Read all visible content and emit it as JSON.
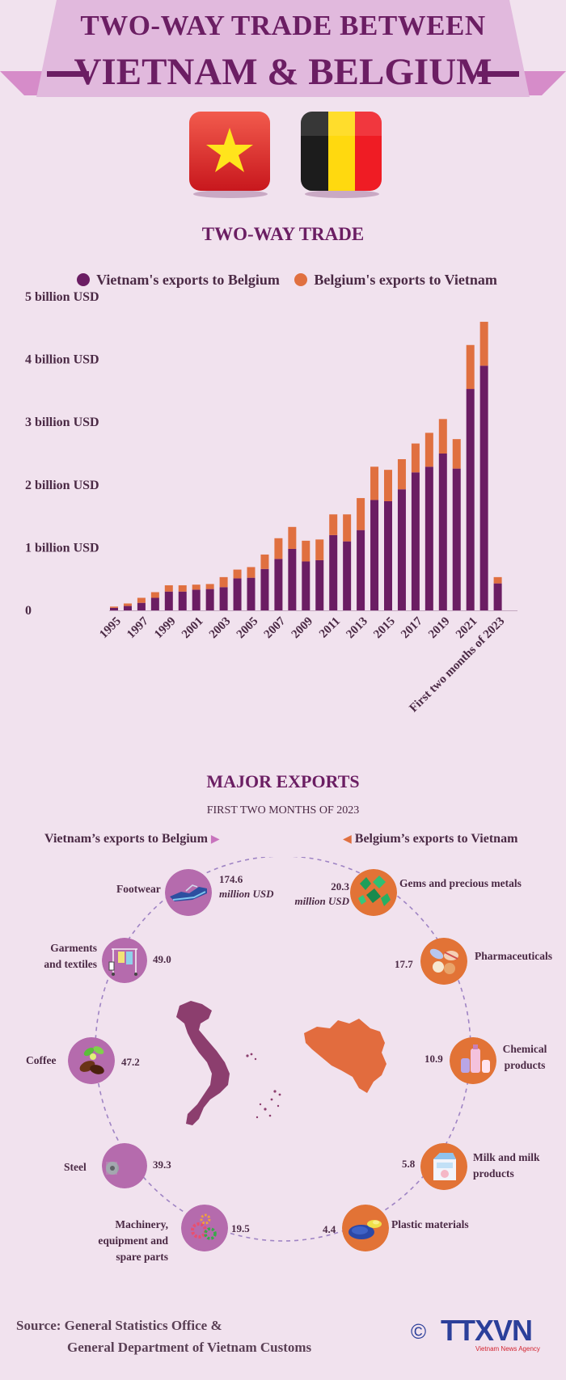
{
  "header": {
    "title_line1": "TWO-WAY TRADE BETWEEN",
    "title_line2": "VIETNAM & BELGIUM"
  },
  "flags": {
    "vietnam_icon": "vietnam-flag-icon",
    "belgium_icon": "belgium-flag-icon"
  },
  "colors": {
    "vietnam": "#6b1d63",
    "belgium": "#e07040",
    "vietnam_circle": "#b56bad",
    "belgium_circle": "#e27336",
    "banner": "#e1b9dd",
    "title": "#6b1e63"
  },
  "chart_data": {
    "type": "bar",
    "stacked": true,
    "title": "TWO-WAY TRADE",
    "xlabel": "",
    "ylabel": "",
    "ylim": [
      0,
      5
    ],
    "yticks": [
      {
        "value": 0,
        "label": "0"
      },
      {
        "value": 1,
        "label": "1 billion USD"
      },
      {
        "value": 2,
        "label": "2 billion USD"
      },
      {
        "value": 3,
        "label": "3 billion USD"
      },
      {
        "value": 4,
        "label": "4 billion USD"
      },
      {
        "value": 5,
        "label": "5 billion USD"
      }
    ],
    "categories": [
      "1995",
      "1996",
      "1997",
      "1998",
      "1999",
      "2000",
      "2001",
      "2002",
      "2003",
      "2004",
      "2005",
      "2006",
      "2007",
      "2008",
      "2009",
      "2010",
      "2011",
      "2012",
      "2013",
      "2014",
      "2015",
      "2016",
      "2017",
      "2018",
      "2019",
      "2020",
      "2021",
      "2022",
      "First two months of 2023"
    ],
    "shown_tick_labels": [
      "1995",
      "1997",
      "1999",
      "2001",
      "2003",
      "2005",
      "2007",
      "2009",
      "2011",
      "2013",
      "2015",
      "2017",
      "2019",
      "2021",
      "First two months of 2023"
    ],
    "series": [
      {
        "name": "Vietnam's exports to Belgium",
        "values": [
          0.04,
          0.07,
          0.12,
          0.2,
          0.3,
          0.3,
          0.33,
          0.34,
          0.37,
          0.51,
          0.52,
          0.66,
          0.82,
          0.98,
          0.78,
          0.8,
          1.2,
          1.1,
          1.28,
          1.76,
          1.74,
          1.93,
          2.2,
          2.29,
          2.5,
          2.26,
          3.53,
          3.9,
          0.43
        ]
      },
      {
        "name": "Belgium's exports to Vietnam",
        "values": [
          0.02,
          0.04,
          0.08,
          0.09,
          0.1,
          0.1,
          0.08,
          0.08,
          0.16,
          0.14,
          0.17,
          0.23,
          0.33,
          0.35,
          0.33,
          0.33,
          0.33,
          0.43,
          0.51,
          0.53,
          0.5,
          0.48,
          0.46,
          0.54,
          0.55,
          0.47,
          0.7,
          0.7,
          0.1
        ]
      }
    ]
  },
  "major_exports": {
    "title": "MAJOR EXPORTS",
    "subtitle": "FIRST TWO MONTHS OF 2023",
    "vietnam_heading": "Vietnam’s exports to Belgium",
    "belgium_heading": "Belgium’s exports to Vietnam",
    "unit": "million USD",
    "vietnam_items": [
      {
        "label": "Footwear",
        "value": "174.6",
        "icon": "shoe-icon"
      },
      {
        "label": "Garments and textiles",
        "value": "49.0",
        "icon": "clothes-rack-icon"
      },
      {
        "label": "Coffee",
        "value": "47.2",
        "icon": "coffee-beans-icon"
      },
      {
        "label": "Steel",
        "value": "39.3",
        "icon": "steel-roll-icon"
      },
      {
        "label": "Machinery, equipment and spare parts",
        "value": "19.5",
        "icon": "gears-icon"
      }
    ],
    "belgium_items": [
      {
        "label": "Gems and precious metals",
        "value": "20.3",
        "icon": "gems-icon"
      },
      {
        "label": "Pharmaceuticals",
        "value": "17.7",
        "icon": "pills-icon"
      },
      {
        "label": "Chemical products",
        "value": "10.9",
        "icon": "chemical-bottles-icon"
      },
      {
        "label": "Milk and milk products",
        "value": "5.8",
        "icon": "milk-carton-icon"
      },
      {
        "label": "Plastic materials",
        "value": "4.4",
        "icon": "plastic-pellets-icon"
      }
    ]
  },
  "footer": {
    "source_line1": "Source: General Statistics Office &",
    "source_line2": "General Department of Vietnam Customs",
    "logo_text": "TTXVN",
    "logo_subtext": "Vietnam News Agency",
    "copyright": "©"
  }
}
